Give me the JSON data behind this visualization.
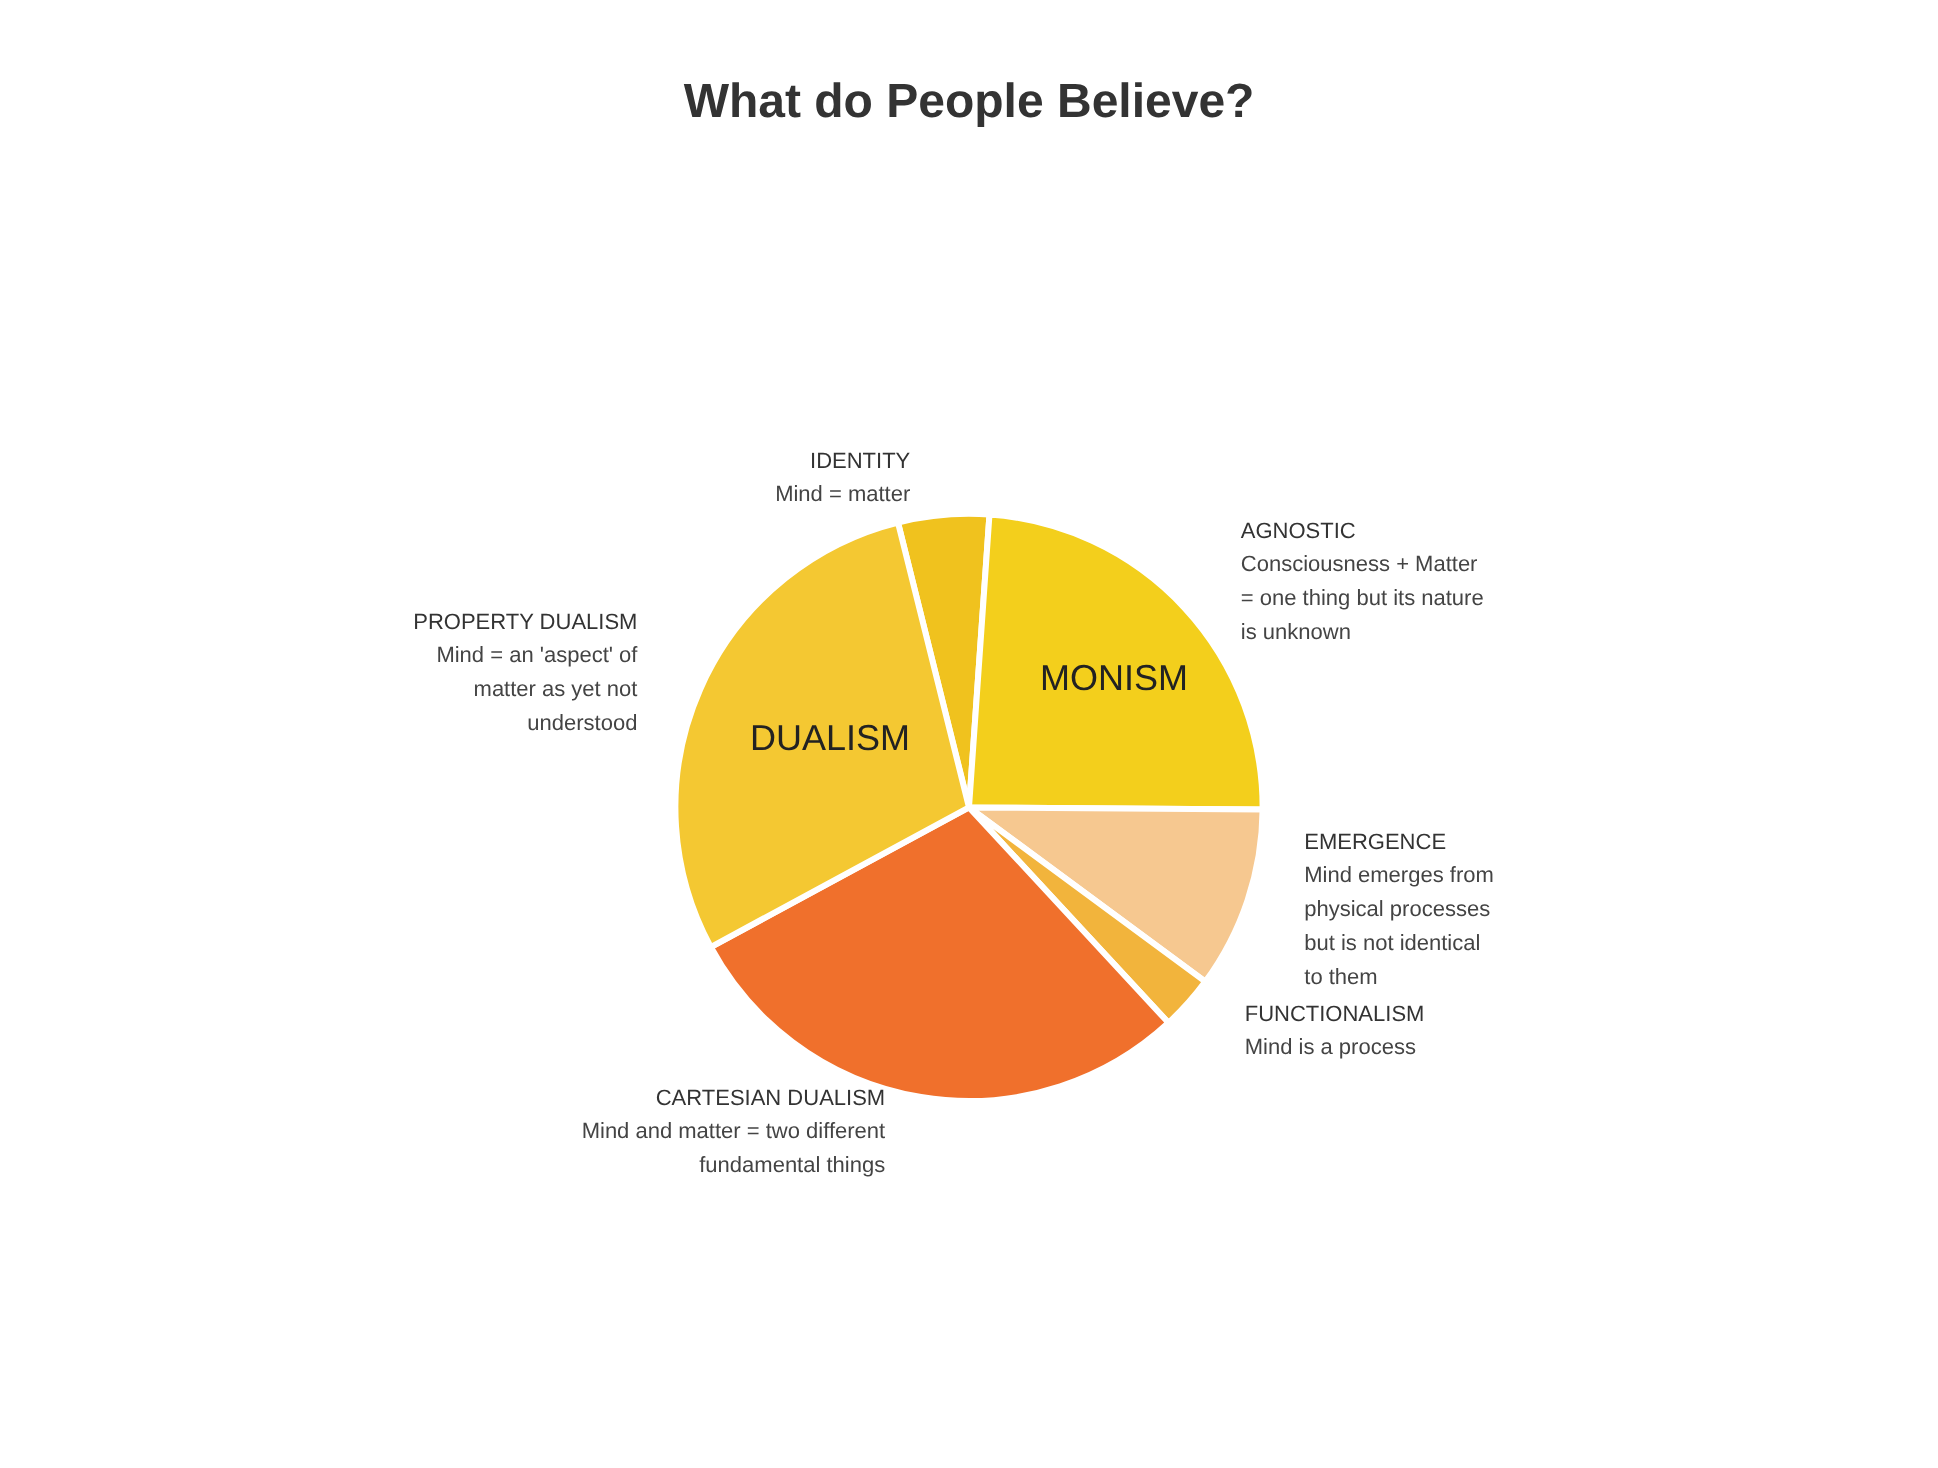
{
  "chart_data": {
    "type": "pie",
    "title": "What do People Believe?",
    "categories": [
      "IDENTITY\nMind = matter",
      "AGNOSTIC\nConsciousness + Matter\n= one thing but its nature\nis unknown",
      "EMERGENCE\nMind emerges from\nphysical processes\nbut is not identical\nto them",
      "FUNCTIONALISM\nMind is a process",
      "CARTESIAN DUALISM\nMind and matter = two different\nfundamental things",
      "PROPERTY DUALISM\nMind = an 'aspect' of\nmatter as yet not\nunderstood"
    ],
    "values": [
      5,
      24,
      10,
      3,
      29,
      29
    ],
    "colors": [
      "#f0c21e",
      "#f3cf1c",
      "#f6c890",
      "#f2b43c",
      "#f0702c",
      "#f4c832"
    ],
    "annotations": [
      "MONISM",
      "DUALISM"
    ],
    "legend": false
  }
}
